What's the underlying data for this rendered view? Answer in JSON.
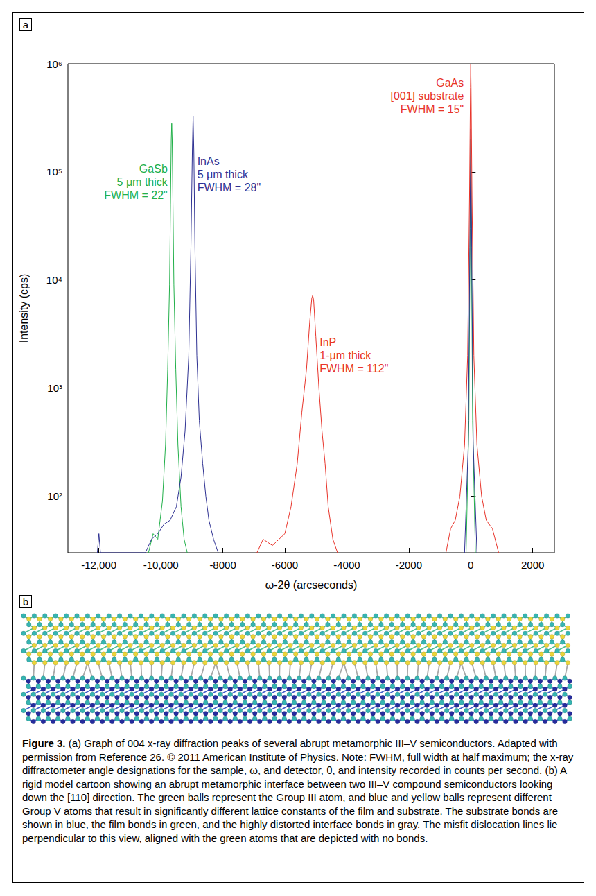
{
  "chart_data": {
    "type": "line",
    "x_label": "ω-2θ (arcseconds)",
    "y_label": "Intensity (cps)",
    "log": "y",
    "grid": false,
    "xlim": [
      -13000,
      2700
    ],
    "xticks": [
      {
        "value": -12000,
        "label": "-12,000"
      },
      {
        "value": -10000,
        "label": "-10,000"
      },
      -8000,
      -6000,
      -4000,
      -2000,
      0,
      2000
    ],
    "ylim": [
      30,
      1000000
    ],
    "yticks": [
      {
        "value": 100,
        "label": "10²"
      },
      {
        "value": 1000,
        "label": "10³"
      },
      {
        "value": 10000,
        "label": "10⁴"
      },
      {
        "value": 100000,
        "label": "10⁵"
      },
      {
        "value": 1000000,
        "label": "10⁶"
      }
    ],
    "series": [
      {
        "name": "GaSb",
        "color": "#22b04a",
        "annotation": [
          "5 μm thick",
          "FWHM = 22\""
        ],
        "x": [
          -10400,
          -10250,
          -10100,
          -9950,
          -9850,
          -9780,
          -9720,
          -9690,
          -9665,
          -9650,
          -9635,
          -9610,
          -9580,
          -9520,
          -9450,
          -9350,
          -9250,
          -9150,
          -4500,
          -150,
          -60,
          -20,
          0,
          20,
          60,
          150
        ],
        "values": [
          30,
          45,
          40,
          90,
          300,
          1500,
          9000,
          50000,
          200000,
          280000,
          200000,
          50000,
          9000,
          1500,
          300,
          80,
          40,
          30,
          null,
          30,
          500,
          30000,
          200000,
          30000,
          500,
          30
        ]
      },
      {
        "name": "InAs",
        "color": "#2e3192",
        "annotation": [
          "5 μm thick",
          "FWHM = 28\""
        ],
        "x": [
          -12050,
          -12000,
          -11950,
          -10500,
          -10300,
          -10100,
          -9900,
          -9700,
          -9500,
          -9350,
          -9220,
          -9100,
          -9030,
          -8985,
          -8960,
          -8935,
          -8900,
          -8840,
          -8760,
          -8650,
          -8550,
          -8450,
          -8300,
          -8150,
          -4500,
          -200,
          -80,
          -30,
          0,
          30,
          80,
          200
        ],
        "values": [
          30,
          45,
          30,
          30,
          40,
          45,
          55,
          60,
          80,
          150,
          400,
          2000,
          20000,
          150000,
          330000,
          150000,
          20000,
          2000,
          500,
          200,
          100,
          60,
          40,
          30,
          null,
          30,
          300,
          20000,
          250000,
          20000,
          300,
          30
        ]
      },
      {
        "name": "InP",
        "color": "#e8342a",
        "annotation": [
          "1-μm thick",
          "FWHM = 112\""
        ],
        "x": [
          -6900,
          -6700,
          -6400,
          -6000,
          -5800,
          -5600,
          -5450,
          -5300,
          -5200,
          -5130,
          -5100,
          -5070,
          -5000,
          -4900,
          -4800,
          -4700,
          -4600,
          -4450,
          -4300
        ],
        "values": [
          30,
          40,
          35,
          45,
          80,
          200,
          600,
          1500,
          4000,
          6800,
          7200,
          6500,
          3000,
          1000,
          400,
          200,
          80,
          40,
          30
        ]
      },
      {
        "name": "GaAs",
        "color": "#e8342a",
        "annotation": [
          "[001] substrate",
          "FWHM = 15\""
        ],
        "x": [
          -800,
          -650,
          -500,
          -350,
          -200,
          -100,
          -40,
          -10,
          0,
          10,
          40,
          100,
          200,
          350,
          500,
          700,
          900
        ],
        "values": [
          30,
          50,
          60,
          100,
          300,
          2000,
          60000,
          600000,
          1000000,
          600000,
          60000,
          2000,
          300,
          100,
          60,
          50,
          30
        ]
      }
    ]
  },
  "figure": {
    "panel_a": {
      "label": "a"
    },
    "panel_b": {
      "label": "b"
    },
    "caption": {
      "label": "Figure 3.",
      "text": "(a) Graph of 004 x-ray diffraction peaks of several abrupt metamorphic III–V semiconductors. Adapted with permission from Reference 26. © 2011 American Institute of Physics. Note: FWHM, full width at half maximum; the x-ray diffractometer angle designations for the sample, ω, and detector, θ, and intensity recorded in counts per second. (b) A rigid model cartoon showing an abrupt metamorphic interface between two III–V compound semiconductors looking down the [110] direction. The green balls represent the Group III atom, and blue and yellow balls represent different Group V atoms that result in significantly different lattice constants of the film and substrate. The substrate bonds are shown in blue, the film bonds in green, and the highly distorted interface bonds in gray. The misfit dislocation lines lie perpendicular to this view, aligned with the green atoms that are depicted with no bonds."
    }
  }
}
